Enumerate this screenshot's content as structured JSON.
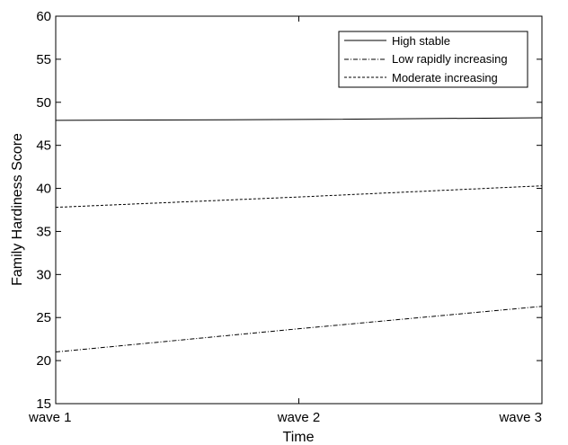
{
  "chart_data": {
    "type": "line",
    "title": "",
    "xlabel": "Time",
    "ylabel": "Family Hardiness Score",
    "categories": [
      "wave 1",
      "wave 2",
      "wave 3"
    ],
    "ylim": [
      15,
      60
    ],
    "yticks": [
      "15",
      "20",
      "25",
      "30",
      "35",
      "40",
      "45",
      "50",
      "55",
      "60"
    ],
    "grid": false,
    "legend_position": "top-right",
    "series": [
      {
        "name": "High stable",
        "style": "solid",
        "values": [
          47.9,
          48.0,
          48.2
        ]
      },
      {
        "name": "Low rapidly increasing",
        "style": "dash-dot",
        "values": [
          21.0,
          23.7,
          26.3
        ]
      },
      {
        "name": "Moderate increasing",
        "style": "dashed",
        "values": [
          37.8,
          39.0,
          40.3
        ]
      }
    ]
  }
}
